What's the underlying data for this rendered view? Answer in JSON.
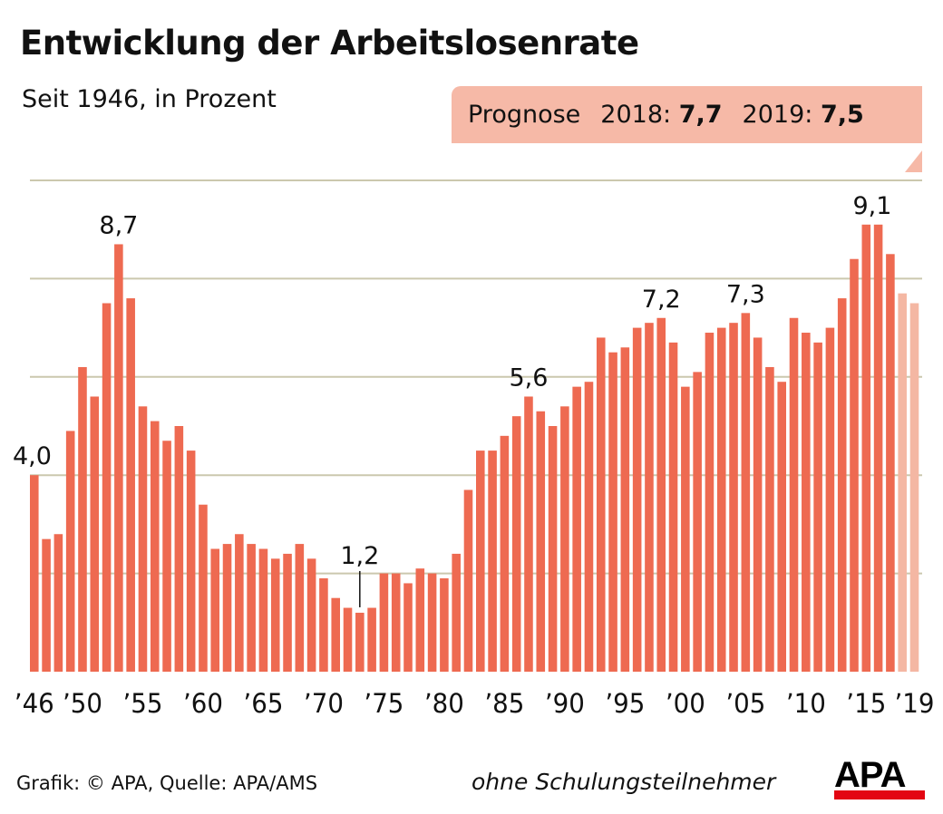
{
  "title": "Entwicklung der Arbeitslosenrate",
  "subtitle": "Seit 1946, in Prozent",
  "forecast": {
    "label": "Prognose",
    "items": [
      {
        "year": "2018:",
        "value": "7,7"
      },
      {
        "year": "2019:",
        "value": "7,5"
      }
    ]
  },
  "footer": {
    "source": "Grafik: © APA, Quelle: APA/AMS",
    "note": "ohne Schulungsteilnehmer",
    "logo": "APA"
  },
  "colors": {
    "bar": "#ee6a51",
    "forecast_bar": "#f4b7a3",
    "grid": "#cbc8ae",
    "forecast_box": "#f6b9a7",
    "logo_red": "#e30613"
  },
  "chart_data": {
    "type": "bar",
    "title": "Entwicklung der Arbeitslosenrate",
    "subtitle": "Seit 1946, in Prozent",
    "ylim": [
      0,
      10
    ],
    "grid": true,
    "gridlines": [
      0,
      2,
      4,
      6,
      8,
      10
    ],
    "x_start": 1946,
    "x_end": 2019,
    "forecast_years": [
      2018,
      2019
    ],
    "values": [
      4.0,
      2.7,
      2.8,
      4.9,
      6.2,
      5.6,
      7.5,
      8.7,
      7.6,
      5.4,
      5.1,
      4.7,
      5.0,
      4.5,
      3.4,
      2.5,
      2.6,
      2.8,
      2.6,
      2.5,
      2.3,
      2.4,
      2.6,
      2.3,
      1.9,
      1.5,
      1.3,
      1.2,
      1.3,
      2.0,
      2.0,
      1.8,
      2.1,
      2.0,
      1.9,
      2.4,
      3.7,
      4.5,
      4.5,
      4.8,
      5.2,
      5.6,
      5.3,
      5.0,
      5.4,
      5.8,
      5.9,
      6.8,
      6.5,
      6.6,
      7.0,
      7.1,
      7.2,
      6.7,
      5.8,
      6.1,
      6.9,
      7.0,
      7.1,
      7.3,
      6.8,
      6.2,
      5.9,
      7.2,
      6.9,
      6.7,
      7.0,
      7.6,
      8.4,
      9.1,
      9.1,
      8.5,
      7.7,
      7.5
    ],
    "tick_labels": [
      {
        "year": 1946,
        "label": "’46"
      },
      {
        "year": 1950,
        "label": "’50"
      },
      {
        "year": 1955,
        "label": "’55"
      },
      {
        "year": 1960,
        "label": "’60"
      },
      {
        "year": 1965,
        "label": "’65"
      },
      {
        "year": 1970,
        "label": "’70"
      },
      {
        "year": 1975,
        "label": "’75"
      },
      {
        "year": 1980,
        "label": "’80"
      },
      {
        "year": 1985,
        "label": "’85"
      },
      {
        "year": 1990,
        "label": "’90"
      },
      {
        "year": 1995,
        "label": "’95"
      },
      {
        "year": 2000,
        "label": "’00"
      },
      {
        "year": 2005,
        "label": "’05"
      },
      {
        "year": 2010,
        "label": "’10"
      },
      {
        "year": 2015,
        "label": "’15"
      },
      {
        "year": 2019,
        "label": "’19"
      }
    ],
    "annotations": [
      {
        "year": 1946,
        "value": 4.0,
        "label": "4,0"
      },
      {
        "year": 1953,
        "value": 8.7,
        "label": "8,7"
      },
      {
        "year": 1973,
        "value": 1.2,
        "label": "1,2",
        "leader": true
      },
      {
        "year": 1987,
        "value": 5.6,
        "label": "5,6"
      },
      {
        "year": 1998,
        "value": 7.2,
        "label": "7,2"
      },
      {
        "year": 2005,
        "value": 7.3,
        "label": "7,3"
      },
      {
        "year": 2015.5,
        "value": 9.1,
        "label": "9,1"
      }
    ]
  }
}
